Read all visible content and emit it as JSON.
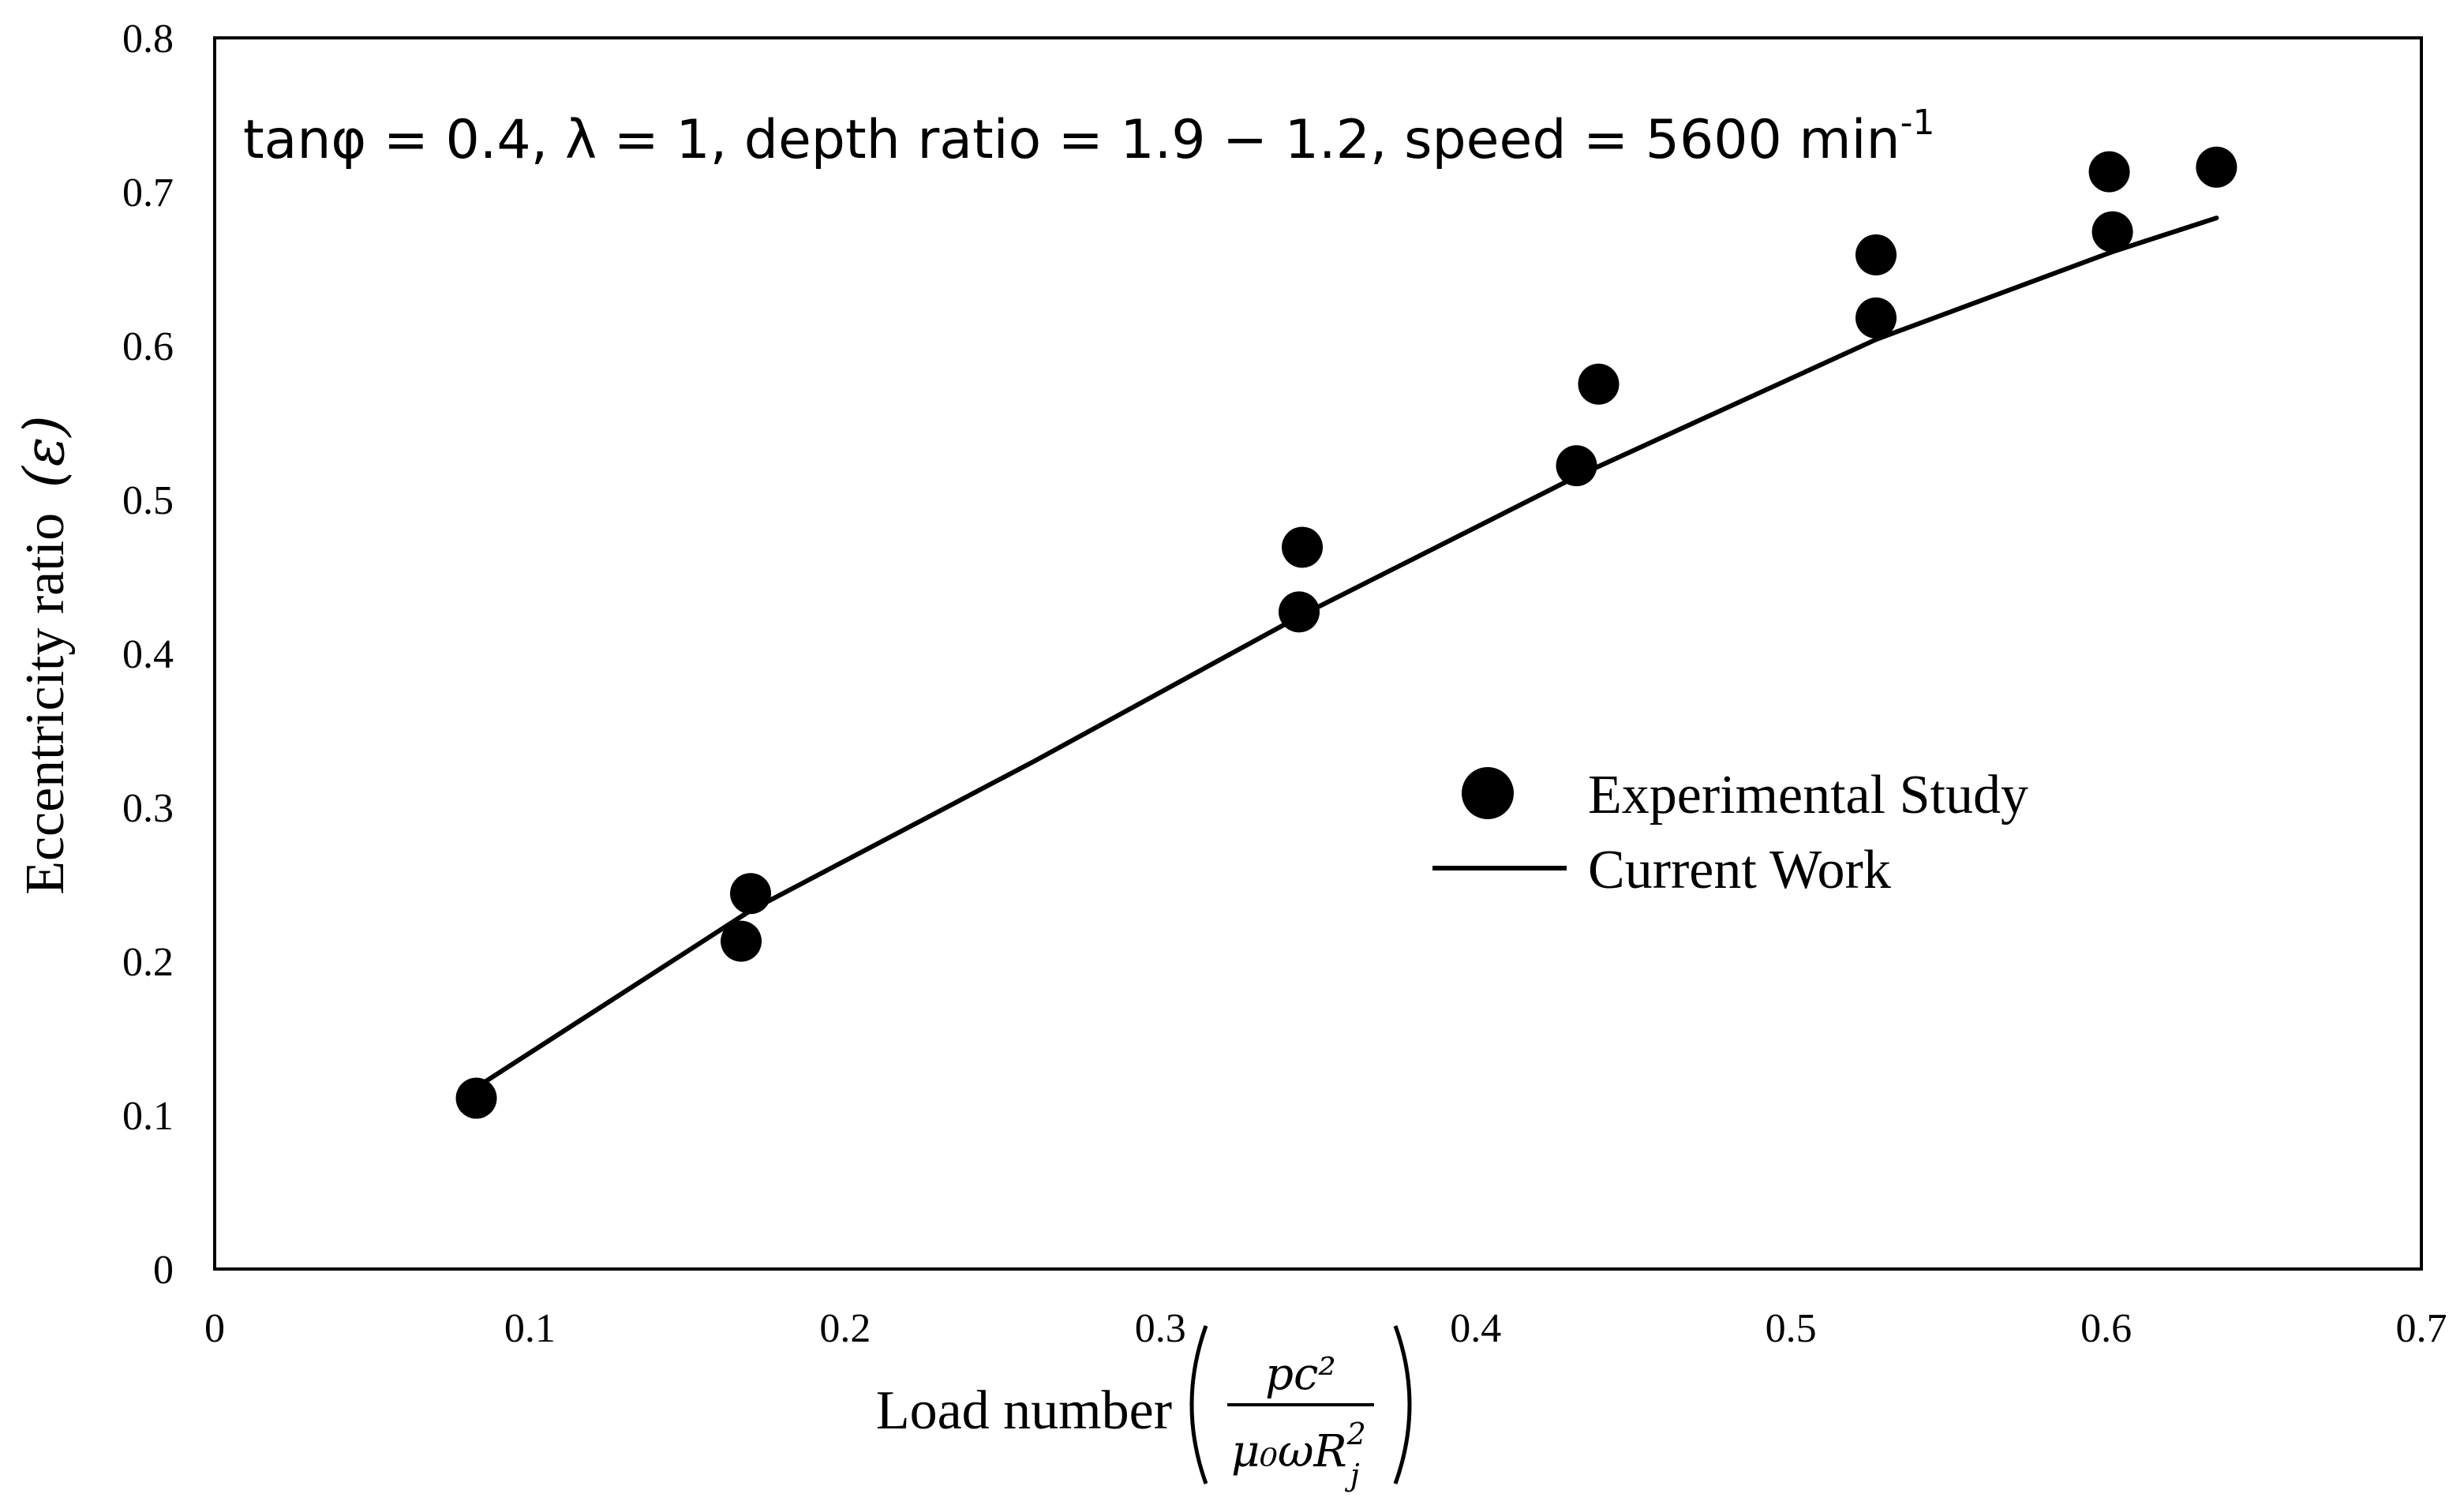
{
  "chart_data": {
    "type": "scatter",
    "title": "",
    "annotation": {
      "main": "tanφ = 0.4, λ = 1, depth ratio = 1.9 − 1.2, speed = 5600 min",
      "superscript": "-1"
    },
    "xlabel": {
      "text": "Load number",
      "fraction_numerator": "pc²",
      "fraction_denominator": "μ₀ωR",
      "denominator_sup": "2",
      "denominator_sub": "j"
    },
    "ylabel": {
      "text": "Eccentricity ratio",
      "symbol": "(ε)"
    },
    "xlim": [
      0,
      0.7
    ],
    "ylim": [
      0,
      0.8
    ],
    "xticks": [
      {
        "value": 0,
        "label": "0"
      },
      {
        "value": 0.1,
        "label": "0.1"
      },
      {
        "value": 0.2,
        "label": "0.2"
      },
      {
        "value": 0.3,
        "label": "0.3"
      },
      {
        "value": 0.4,
        "label": "0.4"
      },
      {
        "value": 0.5,
        "label": "0.5"
      },
      {
        "value": 0.6,
        "label": "0.6"
      },
      {
        "value": 0.7,
        "label": "0.7"
      }
    ],
    "yticks": [
      {
        "value": 0,
        "label": "0"
      },
      {
        "value": 0.1,
        "label": "0.1"
      },
      {
        "value": 0.2,
        "label": "0.2"
      },
      {
        "value": 0.3,
        "label": "0.3"
      },
      {
        "value": 0.4,
        "label": "0.4"
      },
      {
        "value": 0.5,
        "label": "0.5"
      },
      {
        "value": 0.6,
        "label": "0.6"
      },
      {
        "value": 0.7,
        "label": "0.7"
      },
      {
        "value": 0.8,
        "label": "0.8"
      }
    ],
    "grid": false,
    "legend_position": "center-right",
    "series": [
      {
        "name": "Experimental Study",
        "kind": "scatter",
        "color": "#000000",
        "points": [
          {
            "x": 0.083,
            "y": 0.111
          },
          {
            "x": 0.167,
            "y": 0.213
          },
          {
            "x": 0.17,
            "y": 0.244
          },
          {
            "x": 0.344,
            "y": 0.427
          },
          {
            "x": 0.345,
            "y": 0.469
          },
          {
            "x": 0.432,
            "y": 0.522
          },
          {
            "x": 0.439,
            "y": 0.575
          },
          {
            "x": 0.527,
            "y": 0.618
          },
          {
            "x": 0.527,
            "y": 0.659
          },
          {
            "x": 0.602,
            "y": 0.674
          },
          {
            "x": 0.601,
            "y": 0.713
          },
          {
            "x": 0.635,
            "y": 0.716
          }
        ]
      },
      {
        "name": "Current Work",
        "kind": "line",
        "color": "#000000",
        "points": [
          {
            "x": 0.083,
            "y": 0.118
          },
          {
            "x": 0.17,
            "y": 0.233
          },
          {
            "x": 0.26,
            "y": 0.33
          },
          {
            "x": 0.344,
            "y": 0.424
          },
          {
            "x": 0.432,
            "y": 0.515
          },
          {
            "x": 0.527,
            "y": 0.604
          },
          {
            "x": 0.602,
            "y": 0.661
          },
          {
            "x": 0.635,
            "y": 0.683
          }
        ]
      }
    ]
  }
}
